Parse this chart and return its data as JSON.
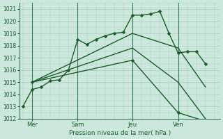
{
  "background_color": "#cce8dc",
  "grid_color": "#aacfbf",
  "line_color": "#1a5c2a",
  "title": "Pression niveau de la mer( hPa )",
  "ylim": [
    1012.0,
    1021.5
  ],
  "yticks": [
    1012,
    1013,
    1014,
    1015,
    1016,
    1017,
    1018,
    1019,
    1020,
    1021
  ],
  "xlim": [
    -0.2,
    10.8
  ],
  "xtick_labels": [
    "Mer",
    "Sam",
    "Jeu",
    "Ven"
  ],
  "xtick_positions": [
    0.5,
    3.0,
    6.0,
    8.5
  ],
  "vline_positions": [
    0.5,
    3.0,
    6.0,
    8.5
  ],
  "series": [
    {
      "x": [
        0.0,
        0.5,
        1.0,
        1.5,
        2.0,
        2.5,
        3.0,
        3.5,
        4.0,
        4.5,
        5.0,
        5.5,
        6.0,
        6.5,
        7.0,
        7.5,
        8.0,
        8.5,
        9.0,
        9.5,
        10.0
      ],
      "y": [
        1013.0,
        1014.4,
        1014.6,
        1015.1,
        1015.2,
        1016.0,
        1018.5,
        1018.1,
        1018.5,
        1018.8,
        1019.0,
        1019.1,
        1020.5,
        1020.5,
        1020.6,
        1020.8,
        1019.0,
        1017.4,
        1017.5,
        1017.5,
        1016.5
      ],
      "marker": "D",
      "markersize": 2.5,
      "linewidth": 1.0
    },
    {
      "x": [
        0.5,
        6.0,
        8.5,
        10.0
      ],
      "y": [
        1015.0,
        1019.0,
        1017.8,
        1014.6
      ],
      "marker": null,
      "markersize": 0,
      "linewidth": 1.0
    },
    {
      "x": [
        0.5,
        6.0,
        8.5,
        10.0
      ],
      "y": [
        1015.0,
        1017.8,
        1015.0,
        1012.0
      ],
      "marker": null,
      "markersize": 0,
      "linewidth": 1.0
    },
    {
      "x": [
        0.5,
        6.0,
        8.5,
        10.0
      ],
      "y": [
        1015.0,
        1016.8,
        1012.5,
        1011.8
      ],
      "marker": "D",
      "markersize": 2.5,
      "linewidth": 1.0
    }
  ]
}
